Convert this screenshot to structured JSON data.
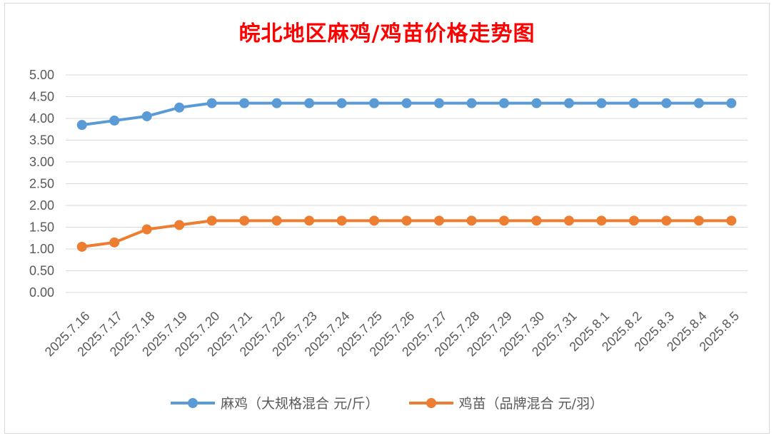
{
  "chart_data": {
    "type": "line",
    "title": "皖北地区麻鸡/鸡苗价格走势图",
    "xlabel": "",
    "ylabel": "",
    "categories": [
      "2025.7.16",
      "2025.7.17",
      "2025.7.18",
      "2025.7.19",
      "2025.7.20",
      "2025.7.21",
      "2025.7.22",
      "2025.7.23",
      "2025.7.24",
      "2025.7.25",
      "2025.7.26",
      "2025.7.27",
      "2025.7.28",
      "2025.7.29",
      "2025.7.30",
      "2025.7.31",
      "2025.8.1",
      "2025.8.2",
      "2025.8.3",
      "2025.8.4",
      "2025.8.5"
    ],
    "series": [
      {
        "name": "麻鸡（大规格混合 元/斤）",
        "color": "#5b9bd5",
        "values": [
          3.85,
          3.95,
          4.05,
          4.25,
          4.35,
          4.35,
          4.35,
          4.35,
          4.35,
          4.35,
          4.35,
          4.35,
          4.35,
          4.35,
          4.35,
          4.35,
          4.35,
          4.35,
          4.35,
          4.35,
          4.35
        ]
      },
      {
        "name": "鸡苗（品牌混合 元/羽）",
        "color": "#ed7d31",
        "values": [
          1.05,
          1.15,
          1.45,
          1.55,
          1.65,
          1.65,
          1.65,
          1.65,
          1.65,
          1.65,
          1.65,
          1.65,
          1.65,
          1.65,
          1.65,
          1.65,
          1.65,
          1.65,
          1.65,
          1.65,
          1.65
        ]
      }
    ],
    "ylim": [
      0,
      5
    ],
    "yticks": [
      "0.00",
      "0.50",
      "1.00",
      "1.50",
      "2.00",
      "2.50",
      "3.00",
      "3.50",
      "4.00",
      "4.50",
      "5.00"
    ],
    "grid": true,
    "legend": "bottom"
  }
}
